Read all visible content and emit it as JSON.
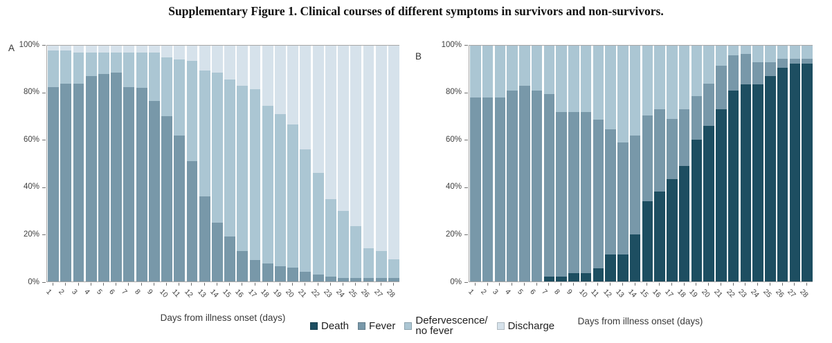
{
  "title": "Supplementary Figure 1. Clinical courses of different symptoms in survivors and non-survivors.",
  "colors": {
    "death": "#1d4e61",
    "fever": "#7898a9",
    "defervescence": "#abc6d3",
    "discharge": "#d6e2eb"
  },
  "y_axis": {
    "tick_values": [
      0,
      20,
      40,
      60,
      80,
      100
    ],
    "tick_labels": [
      "0%",
      "20%",
      "40%",
      "60%",
      "80%",
      "100%"
    ]
  },
  "legend": {
    "items": [
      {
        "key": "death",
        "label": "Death"
      },
      {
        "key": "fever",
        "label": "Fever"
      },
      {
        "key": "defervescence",
        "label": "Defervescence/\nno fever"
      },
      {
        "key": "discharge",
        "label": "Discharge"
      }
    ]
  },
  "panels": [
    {
      "label": "A",
      "xlabel": "Days from illness onset (days)"
    },
    {
      "label": "B",
      "xlabel": "Days from illness onset (days)"
    }
  ],
  "chart_data": [
    {
      "type": "bar",
      "stacked": true,
      "panel": "A",
      "title": "",
      "xlabel": "Days from illness onset (days)",
      "ylabel": "",
      "ylim": [
        0,
        100
      ],
      "grid": false,
      "x": [
        1,
        2,
        3,
        4,
        5,
        6,
        7,
        8,
        9,
        10,
        11,
        12,
        13,
        14,
        15,
        16,
        17,
        18,
        19,
        20,
        21,
        22,
        23,
        24,
        25,
        26,
        27,
        28
      ],
      "series": [
        {
          "name": "Death",
          "key": "death",
          "values": [
            0,
            0,
            0,
            0,
            0,
            0,
            0,
            0,
            0,
            0,
            0,
            0,
            0,
            0,
            0,
            0,
            0,
            0,
            0,
            0,
            0,
            0,
            0,
            0,
            0,
            0,
            0,
            0
          ]
        },
        {
          "name": "Fever",
          "key": "fever",
          "values": [
            82.5,
            84,
            84,
            87,
            88,
            88.5,
            82.5,
            82,
            76.5,
            70,
            62,
            51,
            36,
            25,
            19,
            13,
            9,
            7.5,
            6.5,
            6,
            4,
            3,
            2,
            1.5,
            1.5,
            1.5,
            1.5,
            1.5
          ]
        },
        {
          "name": "Defervescence/no fever",
          "key": "defervescence",
          "values": [
            15.5,
            14,
            13,
            10,
            9,
            8.5,
            14.5,
            15,
            20.5,
            25,
            32,
            42.5,
            53.5,
            63.5,
            66.5,
            70,
            72.5,
            67,
            64.5,
            60.5,
            52,
            43,
            33,
            28.5,
            22,
            12.5,
            11.5,
            8
          ]
        },
        {
          "name": "Discharge",
          "key": "discharge",
          "values": [
            2,
            2,
            3,
            3,
            3,
            3,
            3,
            3,
            3,
            5,
            6,
            6.5,
            10.5,
            11.5,
            14.5,
            17,
            18.5,
            25.5,
            29,
            33.5,
            44,
            54,
            65,
            70,
            76.5,
            86,
            87,
            90.5
          ]
        }
      ]
    },
    {
      "type": "bar",
      "stacked": true,
      "panel": "B",
      "title": "",
      "xlabel": "Days from illness onset (days)",
      "ylabel": "",
      "ylim": [
        0,
        100
      ],
      "grid": false,
      "x": [
        1,
        2,
        3,
        4,
        5,
        6,
        7,
        8,
        9,
        10,
        11,
        12,
        13,
        14,
        15,
        16,
        17,
        18,
        19,
        20,
        21,
        22,
        23,
        24,
        25,
        26,
        27,
        28
      ],
      "series": [
        {
          "name": "Death",
          "key": "death",
          "values": [
            0,
            0,
            0,
            0,
            0,
            0,
            2,
            2,
            3.5,
            3.5,
            5.5,
            11.5,
            11.5,
            20,
            34,
            38,
            43.5,
            49,
            60,
            66,
            73,
            81,
            83.5,
            83.5,
            87,
            90.5,
            92.5,
            92.5
          ]
        },
        {
          "name": "Fever",
          "key": "fever",
          "values": [
            78,
            78,
            78,
            81,
            83,
            81,
            77.5,
            70,
            68.5,
            68.5,
            63,
            53,
            47.5,
            42,
            36.5,
            35,
            25.5,
            24,
            18.5,
            18,
            18.5,
            15,
            13,
            9.5,
            6,
            4,
            2,
            2
          ]
        },
        {
          "name": "Defervescence/no fever",
          "key": "defervescence",
          "values": [
            22,
            22,
            22,
            19,
            17,
            19,
            20.5,
            28,
            28,
            28,
            31.5,
            35.5,
            41,
            38,
            29.5,
            27,
            31,
            27,
            21.5,
            16,
            8.5,
            4,
            3.5,
            7,
            7,
            5.5,
            5.5,
            5.5
          ]
        },
        {
          "name": "Discharge",
          "key": "discharge",
          "values": [
            0,
            0,
            0,
            0,
            0,
            0,
            0,
            0,
            0,
            0,
            0,
            0,
            0,
            0,
            0,
            0,
            0,
            0,
            0,
            0,
            0,
            0,
            0,
            0,
            0,
            0,
            0,
            0
          ]
        }
      ]
    }
  ]
}
